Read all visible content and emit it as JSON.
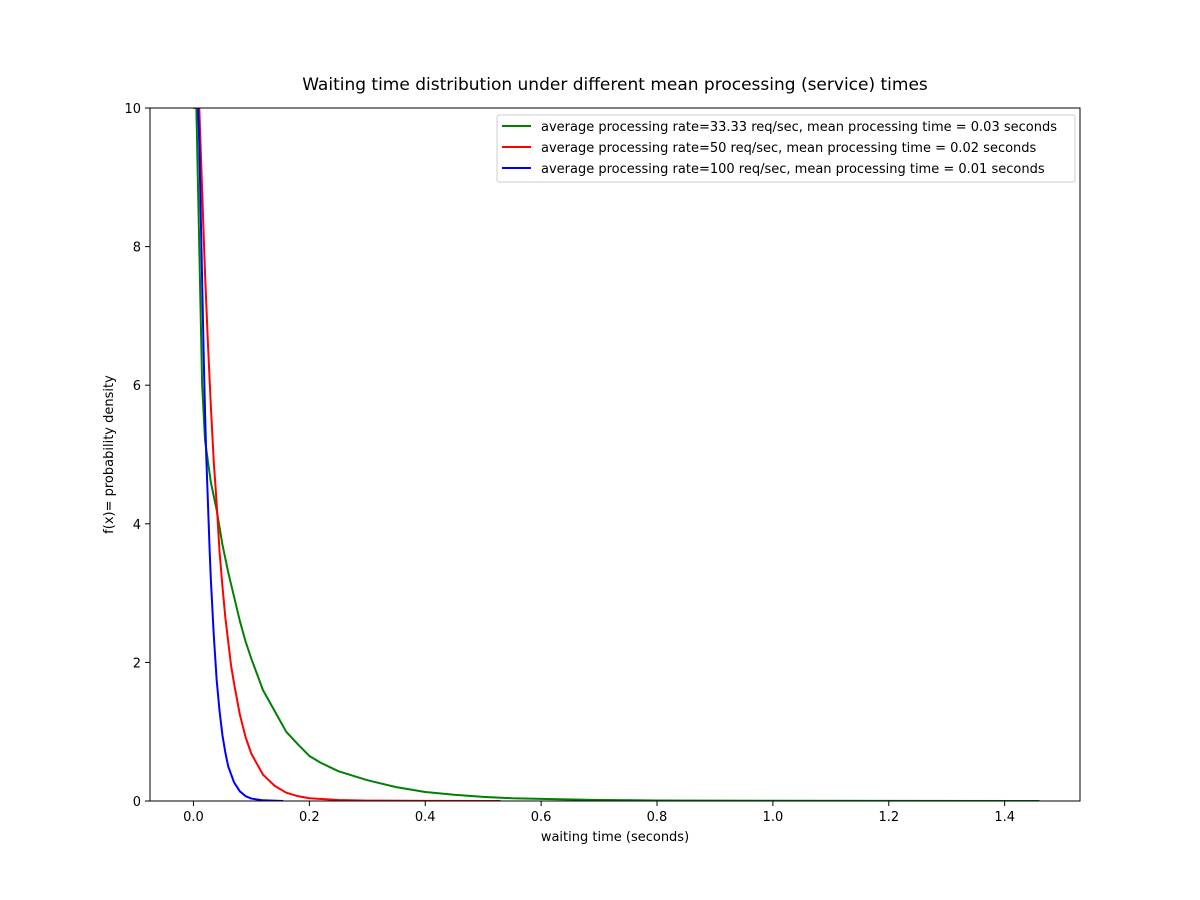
{
  "chart_data": {
    "type": "line",
    "title": "Waiting time distribution under different mean processing (service) times",
    "xlabel": "waiting time (seconds)",
    "ylabel": "f(x)= probability density",
    "xlim": [
      -0.075,
      1.53
    ],
    "ylim": [
      0,
      10
    ],
    "xticks": [
      0.0,
      0.2,
      0.4,
      0.6,
      0.8,
      1.0,
      1.2,
      1.4
    ],
    "xtick_labels": [
      "0.0",
      "0.2",
      "0.4",
      "0.6",
      "0.8",
      "1.0",
      "1.2",
      "1.4"
    ],
    "yticks": [
      0,
      2,
      4,
      6,
      8,
      10
    ],
    "ytick_labels": [
      "0",
      "2",
      "4",
      "6",
      "8",
      "10"
    ],
    "grid": false,
    "legend_position": "top-right",
    "series": [
      {
        "name": "average processing rate=33.33 req/sec, mean processing time = 0.03 seconds",
        "color": "#008000",
        "x": [
          0.0,
          0.005,
          0.01,
          0.015,
          0.02,
          0.025,
          0.03,
          0.04,
          0.05,
          0.06,
          0.07,
          0.08,
          0.09,
          0.1,
          0.12,
          0.14,
          0.16,
          0.18,
          0.2,
          0.22,
          0.25,
          0.3,
          0.35,
          0.4,
          0.45,
          0.5,
          0.55,
          0.6,
          0.7,
          0.8,
          1.0,
          1.2,
          1.46
        ],
        "y": [
          10.0,
          10.0,
          8.0,
          6.0,
          5.2,
          4.9,
          4.6,
          4.2,
          3.7,
          3.3,
          2.95,
          2.6,
          2.3,
          2.05,
          1.6,
          1.3,
          1.0,
          0.82,
          0.65,
          0.55,
          0.43,
          0.3,
          0.2,
          0.13,
          0.09,
          0.06,
          0.04,
          0.03,
          0.015,
          0.008,
          0.003,
          0.001,
          0.0
        ]
      },
      {
        "name": "average processing rate=50 req/sec, mean processing time = 0.02 seconds",
        "color": "#ff0000",
        "x": [
          0.01,
          0.015,
          0.02,
          0.025,
          0.03,
          0.035,
          0.04,
          0.045,
          0.05,
          0.055,
          0.06,
          0.065,
          0.07,
          0.08,
          0.09,
          0.1,
          0.12,
          0.14,
          0.16,
          0.18,
          0.2,
          0.25,
          0.3,
          0.4,
          0.53
        ],
        "y": [
          10.0,
          8.8,
          7.6,
          6.6,
          5.7,
          4.9,
          4.3,
          3.6,
          3.1,
          2.65,
          2.3,
          1.95,
          1.7,
          1.25,
          0.92,
          0.68,
          0.38,
          0.22,
          0.12,
          0.07,
          0.04,
          0.015,
          0.006,
          0.002,
          0.0
        ]
      },
      {
        "name": "average processing rate=100 req/sec, mean processing time = 0.01 seconds",
        "color": "#0000ff",
        "x": [
          0.008,
          0.01,
          0.012,
          0.014,
          0.016,
          0.018,
          0.02,
          0.022,
          0.025,
          0.028,
          0.03,
          0.035,
          0.04,
          0.045,
          0.05,
          0.055,
          0.06,
          0.07,
          0.08,
          0.09,
          0.1,
          0.12,
          0.155
        ],
        "y": [
          10.0,
          9.5,
          8.7,
          7.9,
          7.1,
          6.3,
          5.6,
          5.0,
          4.3,
          3.6,
          3.2,
          2.4,
          1.75,
          1.3,
          0.95,
          0.7,
          0.5,
          0.27,
          0.14,
          0.07,
          0.035,
          0.01,
          0.0
        ]
      }
    ]
  }
}
